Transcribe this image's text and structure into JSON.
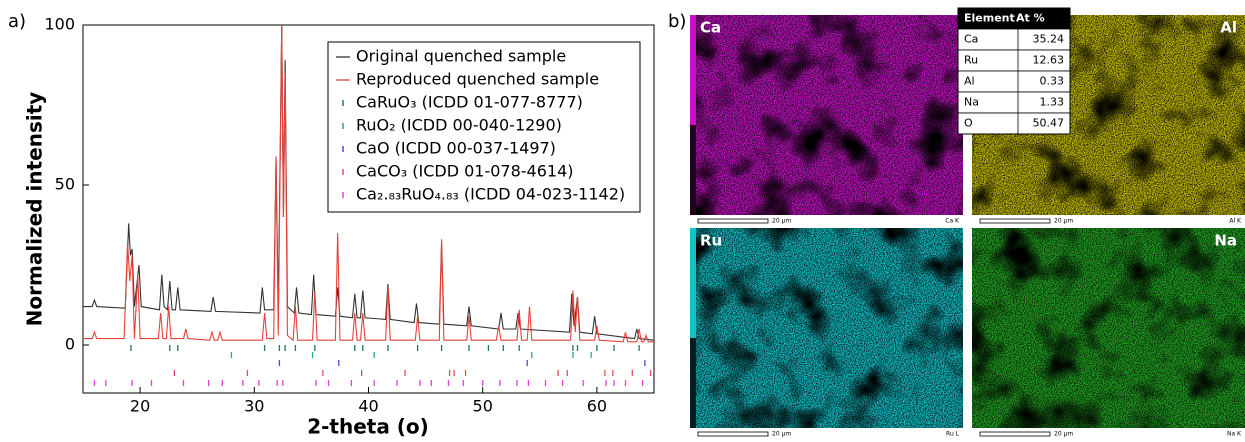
{
  "chart_data": {
    "type": "line",
    "panel_label": "a)",
    "xlabel": "2-theta (o)",
    "ylabel": "Normalized intensity",
    "xlim": [
      15,
      65
    ],
    "ylim": [
      -15,
      100
    ],
    "xticks": [
      20,
      30,
      40,
      50,
      60
    ],
    "yticks": [
      0,
      50,
      100
    ],
    "series": [
      {
        "name": "Original quenched sample",
        "color": "#333333",
        "x": [
          15,
          15.8,
          16,
          16.2,
          18.7,
          19,
          19.15,
          19.3,
          19.5,
          19.9,
          20.1,
          21.7,
          21.9,
          22.1,
          22.4,
          22.6,
          22.8,
          23.1,
          23.3,
          23.5,
          26.2,
          26.4,
          26.6,
          30.5,
          30.7,
          30.9,
          31.7,
          31.9,
          32.1,
          32.4,
          32.55,
          32.7,
          32.9,
          33.5,
          33.7,
          33.9,
          35,
          35.2,
          35.4,
          37.1,
          37.3,
          37.5,
          38.6,
          38.8,
          39,
          39.3,
          39.5,
          39.7,
          41.5,
          41.7,
          41.9,
          44,
          44.2,
          44.4,
          46.2,
          46.4,
          46.6,
          48.6,
          48.8,
          49,
          51.4,
          51.6,
          51.8,
          52.9,
          53.1,
          53.3,
          57.6,
          57.8,
          58,
          58.3,
          58.5,
          59.6,
          59.8,
          60,
          63.3,
          63.5,
          63.7,
          65
        ],
        "values": [
          12,
          12,
          14,
          12,
          11.5,
          38,
          28,
          30,
          12,
          25,
          12,
          11,
          22,
          12,
          11,
          20,
          11,
          11,
          18,
          11,
          10.5,
          15,
          10.5,
          10,
          18,
          11,
          11,
          58,
          12,
          100,
          40,
          89,
          12,
          10,
          18,
          10,
          9.5,
          22,
          9.5,
          9,
          18,
          9,
          8.5,
          16,
          8.5,
          8.5,
          17,
          8.5,
          8,
          19,
          8,
          7,
          13,
          7,
          6.5,
          32,
          6.5,
          6,
          12,
          6,
          5,
          10,
          5,
          5,
          10,
          5,
          4,
          16,
          6,
          15,
          4,
          3.5,
          9,
          3.5,
          2,
          5,
          2,
          1.5
        ]
      },
      {
        "name": "Reproduced quenched sample",
        "color": "#e8413c",
        "x": [
          15,
          15.8,
          16,
          16.2,
          18.6,
          18.9,
          19.1,
          19.3,
          19.5,
          19.8,
          20,
          21.6,
          21.8,
          22,
          22.3,
          22.5,
          22.7,
          23.8,
          24,
          24.2,
          26.1,
          26.3,
          26.5,
          26.8,
          27,
          27.2,
          30.7,
          30.9,
          31.1,
          31.7,
          31.9,
          32.1,
          32.4,
          32.55,
          32.7,
          32.9,
          33.4,
          33.6,
          33.8,
          35.1,
          35.3,
          35.5,
          37.1,
          37.3,
          37.5,
          38.6,
          38.8,
          39,
          39.3,
          39.5,
          39.7,
          41.5,
          41.7,
          41.9,
          44.1,
          44.3,
          44.5,
          46.2,
          46.4,
          46.6,
          48.6,
          48.8,
          49,
          51.2,
          51.4,
          51.6,
          53,
          53.2,
          53.4,
          53.9,
          54.1,
          54.3,
          57.7,
          57.9,
          58.1,
          58.3,
          58.5,
          59.8,
          60,
          60.2,
          62.3,
          62.5,
          62.7,
          63.5,
          63.7,
          63.9,
          64.1,
          64.3,
          64.5,
          65
        ],
        "values": [
          2,
          2,
          4,
          2,
          2,
          32,
          20,
          28,
          2,
          22,
          2,
          2,
          10,
          2,
          2,
          12,
          2,
          2,
          5,
          2,
          1.5,
          4,
          1.5,
          1.5,
          4,
          1.5,
          1.5,
          10,
          2,
          2,
          59,
          3,
          100,
          40,
          85,
          3,
          1.5,
          12,
          1.5,
          1.5,
          17,
          1.5,
          1.5,
          35,
          1.5,
          1.5,
          10,
          1.5,
          1.5,
          10,
          1.5,
          1.5,
          18,
          1.5,
          1.5,
          9,
          1.5,
          1.5,
          33,
          1.5,
          1.5,
          9,
          1.5,
          1.5,
          6,
          1.5,
          1.5,
          11,
          1.5,
          1.5,
          12,
          1.5,
          1.5,
          17,
          4,
          15,
          1.5,
          1.5,
          6,
          1.5,
          1,
          4,
          1,
          1,
          5,
          1,
          1,
          3,
          1,
          1
        ]
      }
    ],
    "references": [
      {
        "name": "CaRuO₃ (ICDD 01-077-8777)",
        "color": "#1f7a4a",
        "x": [
          19.2,
          22.6,
          23.3,
          30.9,
          32.2,
          32.7,
          33.6,
          35.3,
          38.8,
          39.5,
          41.7,
          44.3,
          46.4,
          48.8,
          50.5,
          51.8,
          53.2,
          57.9,
          58.3,
          60,
          61.5,
          63.7
        ]
      },
      {
        "name": "RuO₂ (ICDD 00-040-1290)",
        "color": "#27a88a",
        "x": [
          28,
          35.1,
          40.5,
          54.3,
          57.9,
          59.5
        ]
      },
      {
        "name": "CaO (ICDD 00-037-1497)",
        "color": "#3f4fd0",
        "x": [
          32.2,
          37.4,
          53.9,
          64.2
        ]
      },
      {
        "name": "CaCO₃ (ICDD 01-078-4614)",
        "color": "#e0505a",
        "x": [
          23,
          29.4,
          36,
          39.4,
          43.2,
          47.1,
          47.5,
          48.5,
          56.6,
          57.4,
          60.7,
          61.4,
          63.1,
          64.7
        ]
      },
      {
        "name": "Ca₂.₈₃RuO₄.₈₃ (ICDD 04-023-1142)",
        "color": "#e040e0",
        "x": [
          16,
          17,
          19.3,
          21,
          23.8,
          26,
          27.2,
          29,
          30.4,
          32,
          32.5,
          35.4,
          36.5,
          38.5,
          40.5,
          42.5,
          44.5,
          45.5,
          47,
          48.3,
          50,
          51.5,
          53,
          54,
          55.5,
          57,
          58.8,
          60.8,
          61.5,
          62.5,
          64
        ]
      }
    ]
  },
  "panel_b": {
    "panel_label": "b)",
    "maps": [
      {
        "label": "Ca",
        "line": "Ca K",
        "scale": "20 µm",
        "color": "#c812c8"
      },
      {
        "label": "Al",
        "line": "Al K",
        "scale": "20 µm",
        "color": "#c8c000"
      },
      {
        "label": "Ru",
        "line": "Ru L",
        "scale": "20 µm",
        "color": "#12c4cc"
      },
      {
        "label": "Na",
        "line": "Na K",
        "scale": "20 µm",
        "color": "#22a822"
      }
    ],
    "table": {
      "header": [
        "Element",
        "At %"
      ],
      "rows": [
        [
          "Ca",
          "35.24"
        ],
        [
          "Ru",
          "12.63"
        ],
        [
          "Al",
          "0.33"
        ],
        [
          "Na",
          "1.33"
        ],
        [
          "O",
          "50.47"
        ]
      ]
    }
  }
}
